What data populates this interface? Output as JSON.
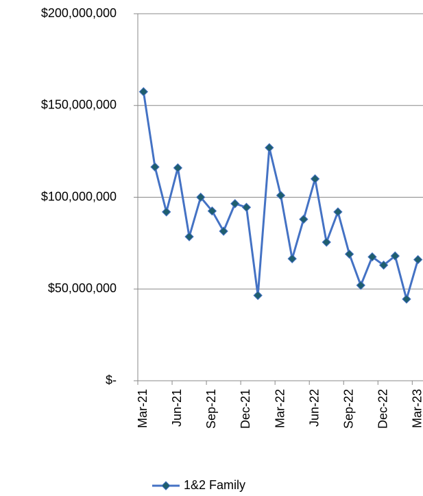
{
  "chart_data": {
    "type": "line",
    "categories": [
      "Mar-21",
      null,
      null,
      "Jun-21",
      null,
      null,
      "Sep-21",
      null,
      null,
      "Dec-21",
      null,
      null,
      "Mar-22",
      null,
      null,
      "Jun-22",
      null,
      null,
      "Sep-22",
      null,
      null,
      "Dec-22",
      null,
      null,
      "Mar-23"
    ],
    "series": [
      {
        "name": "1&2 Family",
        "color": "#4472c4",
        "marker_color": "#1f5e6e",
        "values": [
          157500000,
          116500000,
          92000000,
          116000000,
          78500000,
          100000000,
          92500000,
          81500000,
          96500000,
          94500000,
          46500000,
          127000000,
          101000000,
          66500000,
          88000000,
          110000000,
          75500000,
          92000000,
          69000000,
          52000000,
          67500000,
          63000000,
          68000000,
          44500000,
          66000000
        ]
      }
    ],
    "ylim": [
      0,
      200000000
    ],
    "yticks": [
      {
        "value": 0,
        "label": "$-"
      },
      {
        "value": 50000000,
        "label": "$50,000,000"
      },
      {
        "value": 100000000,
        "label": "$100,000,000"
      },
      {
        "value": 150000000,
        "label": "$150,000,000"
      },
      {
        "value": 200000000,
        "label": "$200,000,000"
      }
    ],
    "grid": true,
    "legend": "bottom"
  }
}
